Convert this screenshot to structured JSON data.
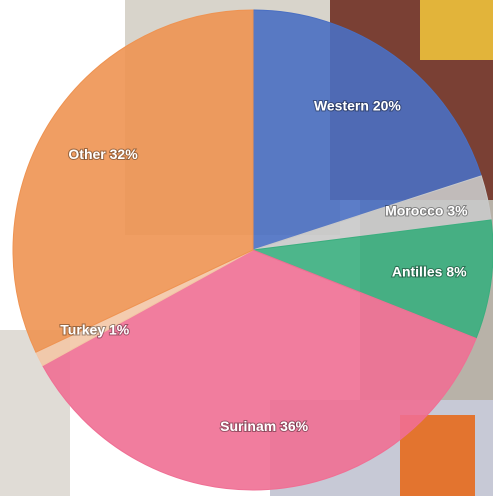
{
  "chart_data": {
    "type": "pie",
    "categories": [
      "Western",
      "Morocco",
      "Antilles",
      "Surinam",
      "Turkey",
      "Other"
    ],
    "values": [
      20,
      3,
      8,
      36,
      1,
      32
    ],
    "value_labels": [
      "20%",
      "3%",
      "8%",
      "36%",
      "1%",
      "32%"
    ],
    "colors": [
      "#4a6fc2",
      "#c9c9c9",
      "#3aae7e",
      "#ef6f94",
      "#f3c6a6",
      "#ee9352"
    ]
  }
}
